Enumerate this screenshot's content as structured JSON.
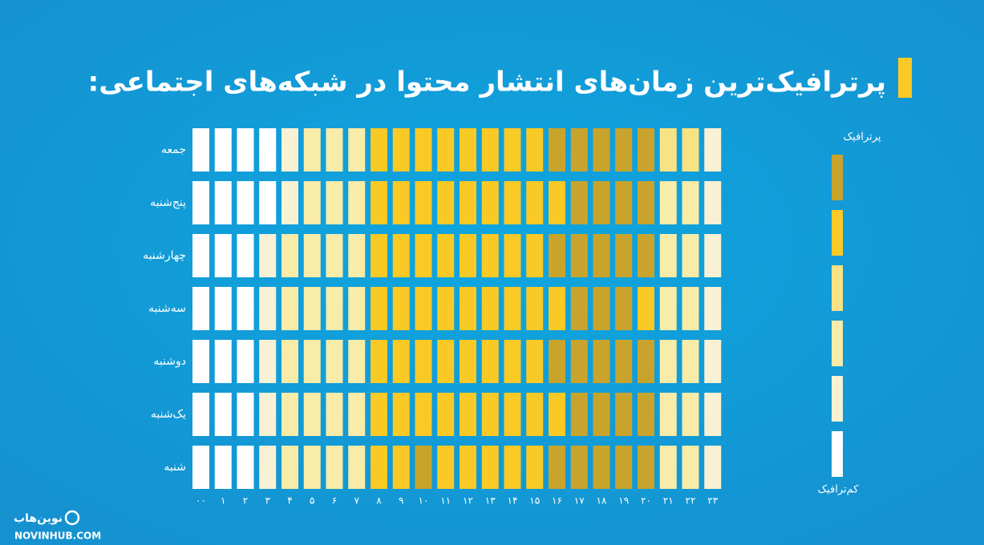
{
  "chart_data": {
    "type": "heatmap",
    "title": "پرترافیک‌ترین زمان‌های انتشار محتوا در شبکه‌های اجتماعی:",
    "categories": [
      "۰۰",
      "۱",
      "۲",
      "۳",
      "۴",
      "۵",
      "۶",
      "۷",
      "۸",
      "۹",
      "۱۰",
      "۱۱",
      "۱۲",
      "۱۳",
      "۱۴",
      "۱۵",
      "۱۶",
      "۱۷",
      "۱۸",
      "۱۹",
      "۲۰",
      "۲۱",
      "۲۲",
      "۲۳"
    ],
    "rows": [
      "جمعه",
      "پنج‌شنبه",
      "چهارشنبه",
      "سه‌شنبه",
      "دوشنبه",
      "یک‌شنبه",
      "شنبه"
    ],
    "values": [
      [
        0,
        0,
        0,
        0,
        1,
        2,
        2,
        2,
        4,
        4,
        4,
        4,
        4,
        4,
        4,
        4,
        5,
        5,
        5,
        5,
        5,
        3,
        3,
        1
      ],
      [
        0,
        0,
        0,
        0,
        1,
        2,
        2,
        2,
        4,
        4,
        4,
        4,
        4,
        4,
        4,
        4,
        4,
        5,
        5,
        5,
        5,
        2,
        2,
        1
      ],
      [
        0,
        0,
        0,
        1,
        2,
        2,
        2,
        2,
        4,
        4,
        4,
        4,
        4,
        4,
        4,
        4,
        5,
        5,
        5,
        5,
        5,
        2,
        2,
        1
      ],
      [
        0,
        0,
        0,
        1,
        2,
        2,
        2,
        2,
        4,
        4,
        4,
        4,
        4,
        4,
        4,
        4,
        4,
        5,
        5,
        5,
        4,
        2,
        2,
        1
      ],
      [
        0,
        0,
        0,
        1,
        2,
        2,
        2,
        2,
        4,
        4,
        4,
        4,
        4,
        4,
        4,
        4,
        5,
        5,
        5,
        5,
        5,
        2,
        2,
        1
      ],
      [
        0,
        0,
        0,
        1,
        2,
        2,
        2,
        2,
        4,
        4,
        4,
        4,
        4,
        4,
        4,
        4,
        4,
        5,
        5,
        5,
        5,
        2,
        2,
        1
      ],
      [
        0,
        0,
        0,
        1,
        2,
        2,
        2,
        2,
        4,
        4,
        5,
        4,
        4,
        4,
        4,
        4,
        5,
        5,
        5,
        5,
        5,
        2,
        2,
        1
      ]
    ],
    "colors": [
      "#ffffff",
      "#f8f1d4",
      "#f9eba8",
      "#f8e283",
      "#f9c926",
      "#c9a42c"
    ],
    "legend_high": "پرترافیک",
    "legend_low": "کم‌ترافیک"
  },
  "logo": {
    "name": "نوین‌هاب",
    "site": "NOVINHUB.COM"
  }
}
